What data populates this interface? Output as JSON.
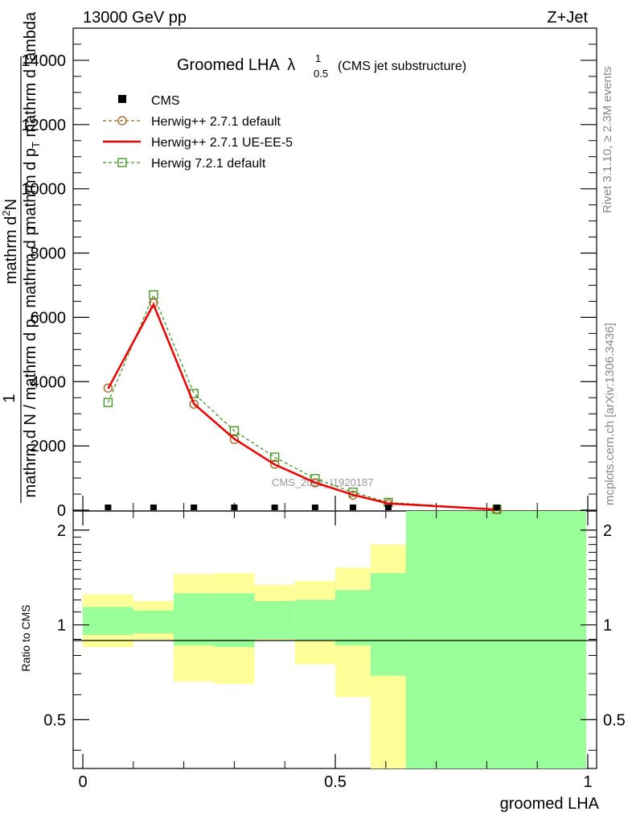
{
  "header": {
    "left": "13000 GeV pp",
    "right": "Z+Jet"
  },
  "title": {
    "main": "Groomed LHA",
    "lambda": "λ",
    "sup": "1",
    "sub": "0.5",
    "note": "(CMS jet substructure)"
  },
  "ylabel_main": {
    "line1": "mathrm d",
    "line1b": "2",
    "line1c": "N",
    "line2": "mathrm d p",
    "line2b": "T",
    "line2c": " mathrm d lambda",
    "one": "1",
    "line3": "mathrm d N / mathrm d p",
    "line3b": "T",
    "line3c": " mathrm d p"
  },
  "ylabel_ratio": "Ratio to CMS",
  "xlabel": "groomed LHA",
  "watermark": "CMS_2021_I1920187",
  "side_right_top": "Rivet 3.1.10, ≥ 2.3M events",
  "side_right_bottom": "mcplots.cern.ch [arXiv:1306.3436]",
  "legend": [
    {
      "name": "CMS",
      "color": "#000000"
    },
    {
      "name": "Herwig++ 2.7.1 default",
      "color": "#a05a1a"
    },
    {
      "name": "Herwig++ 2.7.1 UE-EE-5",
      "color": "#ee0000"
    },
    {
      "name": "Herwig 7.2.1 default",
      "color": "#3a8f1a"
    }
  ],
  "chart_data": {
    "type": "line",
    "xlim": [
      0,
      1
    ],
    "ylim": [
      0,
      15000
    ],
    "ratio_ylim": [
      0.35,
      2.3
    ],
    "x_ticks": [
      "0",
      "0.5",
      "1"
    ],
    "y_ticks": [
      "2000",
      "4000",
      "6000",
      "8000",
      "10000",
      "12000",
      "14000"
    ],
    "ratio_ticks": [
      "0.5",
      "1",
      "2"
    ],
    "bin_edges": [
      0,
      0.1,
      0.18,
      0.26,
      0.34,
      0.42,
      0.5,
      0.57,
      0.64,
      1.0
    ],
    "x": [
      0.05,
      0.14,
      0.22,
      0.3,
      0.38,
      0.46,
      0.535,
      0.605,
      0.82
    ],
    "series": [
      {
        "name": "CMS",
        "values": [
          30,
          30,
          30,
          30,
          30,
          30,
          30,
          30,
          30
        ]
      },
      {
        "name": "Herwig++ 2.7.1 default",
        "values": [
          3800,
          6450,
          3300,
          2200,
          1430,
          850,
          470,
          200,
          20
        ]
      },
      {
        "name": "Herwig++ 2.7.1 UE-EE-5",
        "values": [
          3780,
          6400,
          3310,
          2220,
          1420,
          860,
          480,
          210,
          20
        ]
      },
      {
        "name": "Herwig 7.2.1 default",
        "values": [
          3350,
          6700,
          3630,
          2470,
          1650,
          980,
          560,
          240,
          30
        ]
      }
    ],
    "ratio_bands": {
      "yellow": [
        [
          0.85,
          1.25
        ],
        [
          0.89,
          1.19
        ],
        [
          0.66,
          1.45
        ],
        [
          0.65,
          1.46
        ],
        [
          0.89,
          1.34
        ],
        [
          0.75,
          1.38
        ],
        [
          0.59,
          1.52
        ],
        [
          0.35,
          1.8
        ],
        [
          0.35,
          2.3
        ]
      ],
      "green": [
        [
          0.93,
          1.14
        ],
        [
          0.94,
          1.11
        ],
        [
          0.86,
          1.26
        ],
        [
          0.85,
          1.26
        ],
        [
          0.9,
          1.19
        ],
        [
          0.89,
          1.2
        ],
        [
          0.86,
          1.29
        ],
        [
          0.69,
          1.46
        ],
        [
          0.35,
          2.3
        ]
      ]
    }
  }
}
